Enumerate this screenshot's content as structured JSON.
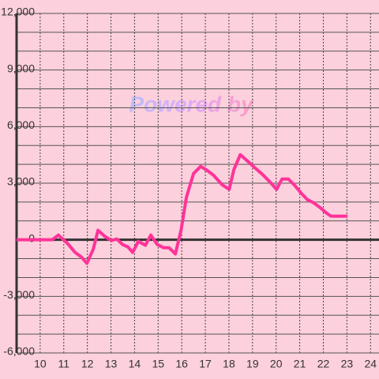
{
  "chart_data": {
    "type": "line",
    "watermark": "Powered by",
    "x": [
      9,
      10.51,
      10.77,
      11.14,
      11.48,
      11.75,
      11.98,
      12.25,
      12.45,
      12.75,
      13.02,
      13.25,
      13.49,
      13.72,
      13.92,
      14.16,
      14.46,
      14.69,
      14.96,
      15.23,
      15.46,
      15.73,
      15.97,
      16.2,
      16.5,
      16.8,
      17.07,
      17.34,
      17.71,
      18.01,
      18.21,
      18.48,
      18.78,
      19.08,
      19.45,
      19.75,
      20.02,
      20.25,
      20.52,
      20.79,
      21.06,
      21.32,
      21.59,
      21.86,
      22.13,
      22.33,
      23.03
    ],
    "series": [
      {
        "color": "#ff3399",
        "values": [
          0,
          0,
          250,
          -170,
          -670,
          -920,
          -1250,
          -500,
          500,
          170,
          -40,
          40,
          -250,
          -380,
          -670,
          -80,
          -290,
          250,
          -250,
          -420,
          -420,
          -750,
          500,
          2260,
          3510,
          3890,
          3680,
          3430,
          2920,
          2670,
          3720,
          4510,
          4180,
          3840,
          3430,
          3050,
          2670,
          3220,
          3220,
          2880,
          2470,
          2130,
          1960,
          1710,
          1420,
          1250,
          1250
        ]
      }
    ],
    "xlim": [
      9,
      24.36
    ],
    "xticks": [
      10,
      11,
      12,
      13,
      14,
      15,
      16,
      17,
      18,
      19,
      20,
      21,
      22,
      23,
      24
    ],
    "ylim": [
      -6000,
      12000
    ],
    "yticks": [
      {
        "value": -6000,
        "label": "-6,000"
      },
      {
        "value": -3000,
        "label": "-3,000"
      },
      0,
      {
        "value": 3000,
        "label": "3,000"
      },
      {
        "value": 6000,
        "label": "6,000"
      },
      {
        "value": 9000,
        "label": "9,000"
      },
      {
        "value": 12000,
        "label": "12,000"
      }
    ],
    "yminor": [
      -5000,
      -4000,
      -2000,
      -1000,
      1000,
      2000,
      4000,
      5000,
      7000,
      8000,
      10000,
      11000
    ],
    "grid": true
  }
}
